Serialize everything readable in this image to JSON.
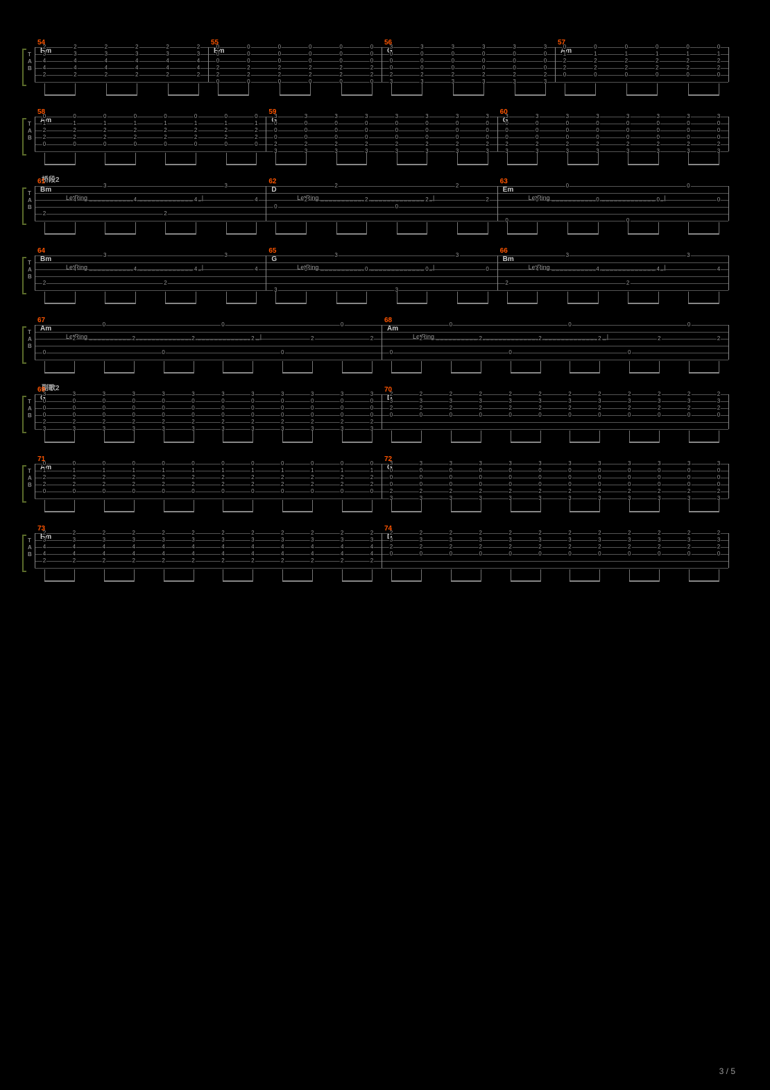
{
  "page_number": "3 / 5",
  "colors": {
    "bg": "#000000",
    "line": "#555555",
    "text": "#999999",
    "chord": "#cccccc",
    "measure_num": "#ff5500",
    "bracket": "#5a6b2a"
  },
  "tab_clef": [
    "T",
    "A",
    "B"
  ],
  "staff_width": 1000,
  "string_count": 6,
  "string_spacing": 10,
  "systems": [
    {
      "section": null,
      "letring": [],
      "measures": [
        {
          "num": "54",
          "chord": "Bm",
          "frets": [
            [
              2,
              3,
              4,
              4,
              2
            ],
            [
              2,
              3,
              4,
              4,
              2
            ],
            [
              2,
              3,
              4,
              4,
              2
            ],
            [
              2,
              3,
              4,
              4,
              2
            ],
            [
              2,
              3,
              4,
              4,
              2
            ],
            [
              2,
              3,
              4,
              4,
              2
            ]
          ],
          "strings": [
            0,
            1,
            2,
            3,
            4
          ]
        },
        {
          "num": "55",
          "chord": "Em",
          "frets": [
            [
              0,
              0,
              0,
              2,
              2,
              0
            ],
            [
              0,
              0,
              0,
              2,
              2,
              0
            ],
            [
              0,
              0,
              0,
              2,
              2,
              0
            ],
            [
              0,
              0,
              0,
              2,
              2,
              0
            ],
            [
              0,
              0,
              0,
              2,
              2,
              0
            ],
            [
              0,
              0,
              0,
              2,
              2,
              0
            ]
          ],
          "strings": [
            0,
            1,
            2,
            3,
            4,
            5
          ]
        },
        {
          "num": "56",
          "chord": "G",
          "frets": [
            [
              3,
              0,
              0,
              0,
              2,
              3
            ],
            [
              3,
              0,
              0,
              0,
              2,
              3
            ],
            [
              3,
              0,
              0,
              0,
              2,
              3
            ],
            [
              3,
              0,
              0,
              0,
              2,
              3
            ],
            [
              3,
              0,
              0,
              0,
              2,
              3
            ],
            [
              3,
              0,
              0,
              0,
              2,
              3
            ]
          ],
          "strings": [
            0,
            1,
            2,
            3,
            4,
            5
          ]
        },
        {
          "num": "57",
          "chord": "Am",
          "frets": [
            [
              0,
              1,
              2,
              2,
              0
            ],
            [
              0,
              1,
              2,
              2,
              0
            ],
            [
              0,
              1,
              2,
              2,
              0
            ],
            [
              0,
              1,
              2,
              2,
              0
            ],
            [
              0,
              1,
              2,
              2,
              0
            ],
            [
              0,
              1,
              2,
              2,
              0
            ]
          ],
          "strings": [
            0,
            1,
            2,
            3,
            4
          ]
        }
      ],
      "beam_pattern": "strum"
    },
    {
      "section": null,
      "letring": [],
      "measures": [
        {
          "num": "58",
          "chord": "Am",
          "frets": [
            [
              0,
              1,
              2,
              2,
              0
            ],
            [
              0,
              1,
              2,
              2,
              0
            ],
            [
              0,
              1,
              2,
              2,
              0
            ],
            [
              0,
              1,
              2,
              2,
              0
            ],
            [
              0,
              1,
              2,
              2,
              0
            ],
            [
              0,
              1,
              2,
              2,
              0
            ],
            [
              0,
              1,
              2,
              2,
              0
            ],
            [
              0,
              1,
              2,
              2,
              0
            ]
          ],
          "strings": [
            0,
            1,
            2,
            3,
            4
          ]
        },
        {
          "num": "59",
          "chord": "G",
          "frets": [
            [
              3,
              0,
              0,
              0,
              2,
              3
            ],
            [
              3,
              0,
              0,
              0,
              2,
              3
            ],
            [
              3,
              0,
              0,
              0,
              2,
              3
            ],
            [
              3,
              0,
              0,
              0,
              2,
              3
            ],
            [
              3,
              0,
              0,
              0,
              2,
              3
            ],
            [
              3,
              0,
              0,
              0,
              2,
              3
            ],
            [
              3,
              0,
              0,
              0,
              2,
              3
            ],
            [
              3,
              0,
              0,
              0,
              2,
              3
            ]
          ],
          "strings": [
            0,
            1,
            2,
            3,
            4,
            5
          ]
        },
        {
          "num": "60",
          "chord": "G",
          "frets": [
            [
              3,
              0,
              0,
              0,
              2,
              3
            ],
            [
              3,
              0,
              0,
              0,
              2,
              3
            ],
            [
              3,
              0,
              0,
              0,
              2,
              3
            ],
            [
              3,
              0,
              0,
              0,
              2,
              3
            ],
            [
              3,
              0,
              0,
              0,
              2,
              3
            ],
            [
              3,
              0,
              0,
              0,
              2,
              3
            ],
            [
              3,
              0,
              0,
              0,
              2,
              3
            ],
            [
              3,
              0,
              0,
              0,
              2,
              3
            ]
          ],
          "strings": [
            0,
            1,
            2,
            3,
            4,
            5
          ]
        }
      ],
      "beam_pattern": "strum"
    },
    {
      "section": "桥段2",
      "letring": [
        {
          "m": 0,
          "text": "LetRing"
        },
        {
          "m": 1,
          "text": "LetRing"
        },
        {
          "m": 2,
          "text": "LetRing"
        }
      ],
      "measures": [
        {
          "num": "61",
          "chord": "Bm",
          "pattern": "arp",
          "notes": [
            {
              "s": 4,
              "f": 2
            },
            {
              "s": 2,
              "f": 4
            },
            {
              "s": 0,
              "f": 3
            },
            {
              "s": 2,
              "f": 4
            },
            {
              "s": 4,
              "f": 2
            },
            {
              "s": 2,
              "f": 4
            },
            {
              "s": 0,
              "f": 3
            },
            {
              "s": 2,
              "f": 4
            }
          ]
        },
        {
          "num": "62",
          "chord": "D",
          "pattern": "arp",
          "notes": [
            {
              "s": 3,
              "f": 0
            },
            {
              "s": 2,
              "f": 2
            },
            {
              "s": 0,
              "f": 2
            },
            {
              "s": 2,
              "f": 2
            },
            {
              "s": 3,
              "f": 0
            },
            {
              "s": 2,
              "f": 2
            },
            {
              "s": 0,
              "f": 2
            },
            {
              "s": 2,
              "f": 2
            }
          ]
        },
        {
          "num": "63",
          "chord": "Em",
          "pattern": "arp",
          "notes": [
            {
              "s": 5,
              "f": 0
            },
            {
              "s": 2,
              "f": 0
            },
            {
              "s": 0,
              "f": 0
            },
            {
              "s": 2,
              "f": 0
            },
            {
              "s": 5,
              "f": 0
            },
            {
              "s": 2,
              "f": 0
            },
            {
              "s": 0,
              "f": 0
            },
            {
              "s": 2,
              "f": 0
            }
          ]
        }
      ],
      "beam_pattern": "eighths"
    },
    {
      "section": null,
      "letring": [
        {
          "m": 0,
          "text": "LetRing"
        },
        {
          "m": 1,
          "text": "LetRing"
        },
        {
          "m": 2,
          "text": "LetRing"
        }
      ],
      "measures": [
        {
          "num": "64",
          "chord": "Bm",
          "pattern": "arp",
          "notes": [
            {
              "s": 4,
              "f": 2
            },
            {
              "s": 2,
              "f": 4
            },
            {
              "s": 0,
              "f": 3
            },
            {
              "s": 2,
              "f": 4
            },
            {
              "s": 4,
              "f": 2
            },
            {
              "s": 2,
              "f": 4
            },
            {
              "s": 0,
              "f": 3
            },
            {
              "s": 2,
              "f": 4
            }
          ]
        },
        {
          "num": "65",
          "chord": "G",
          "pattern": "arp",
          "notes": [
            {
              "s": 5,
              "f": 3
            },
            {
              "s": 2,
              "f": 0
            },
            {
              "s": 0,
              "f": 3
            },
            {
              "s": 2,
              "f": 0
            },
            {
              "s": 5,
              "f": 3
            },
            {
              "s": 2,
              "f": 0
            },
            {
              "s": 0,
              "f": 3
            },
            {
              "s": 2,
              "f": 0
            }
          ]
        },
        {
          "num": "66",
          "chord": "Bm",
          "pattern": "arp",
          "notes": [
            {
              "s": 4,
              "f": 2
            },
            {
              "s": 2,
              "f": 4
            },
            {
              "s": 0,
              "f": 3
            },
            {
              "s": 2,
              "f": 4
            },
            {
              "s": 4,
              "f": 2
            },
            {
              "s": 2,
              "f": 4
            },
            {
              "s": 0,
              "f": 3
            },
            {
              "s": 2,
              "f": 4
            }
          ]
        }
      ],
      "beam_pattern": "eighths"
    },
    {
      "section": null,
      "letring": [
        {
          "m": 0,
          "text": "LetRing"
        },
        {
          "m": 1,
          "text": "LetRing"
        }
      ],
      "measures": [
        {
          "num": "67",
          "chord": "Am",
          "pattern": "arp",
          "notes": [
            {
              "s": 4,
              "f": 0
            },
            {
              "s": 2,
              "f": 2
            },
            {
              "s": 0,
              "f": 0
            },
            {
              "s": 2,
              "f": 2
            },
            {
              "s": 4,
              "f": 0
            },
            {
              "s": 2,
              "f": 2
            },
            {
              "s": 0,
              "f": 0
            },
            {
              "s": 2,
              "f": 2
            },
            {
              "s": 4,
              "f": 0
            },
            {
              "s": 2,
              "f": 2
            },
            {
              "s": 0,
              "f": 0
            },
            {
              "s": 2,
              "f": 2
            }
          ]
        },
        {
          "num": "68",
          "chord": "Am",
          "pattern": "arp",
          "notes": [
            {
              "s": 4,
              "f": 0
            },
            {
              "s": 2,
              "f": 2
            },
            {
              "s": 0,
              "f": 0
            },
            {
              "s": 2,
              "f": 2
            },
            {
              "s": 4,
              "f": 0
            },
            {
              "s": 2,
              "f": 2
            },
            {
              "s": 0,
              "f": 0
            },
            {
              "s": 2,
              "f": 2
            },
            {
              "s": 4,
              "f": 0
            },
            {
              "s": 2,
              "f": 2
            },
            {
              "s": 0,
              "f": 0
            },
            {
              "s": 2,
              "f": 2
            }
          ]
        }
      ],
      "beam_pattern": "eighths"
    },
    {
      "section": "副歌2",
      "letring": [],
      "measures": [
        {
          "num": "69",
          "chord": "G",
          "frets": [
            [
              3,
              0,
              0,
              0,
              2,
              3
            ]
          ],
          "repeat": 12,
          "strings": [
            0,
            1,
            2,
            3,
            4,
            5
          ]
        },
        {
          "num": "70",
          "chord": "D",
          "frets": [
            [
              2,
              3,
              2,
              0
            ]
          ],
          "repeat": 12,
          "strings": [
            0,
            1,
            2,
            3
          ]
        }
      ],
      "beam_pattern": "strum"
    },
    {
      "section": null,
      "letring": [],
      "measures": [
        {
          "num": "71",
          "chord": "Am",
          "frets": [
            [
              0,
              1,
              2,
              2,
              0
            ]
          ],
          "repeat": 12,
          "strings": [
            0,
            1,
            2,
            3,
            4
          ]
        },
        {
          "num": "72",
          "chord": "G",
          "frets": [
            [
              3,
              0,
              0,
              0,
              2,
              3
            ]
          ],
          "repeat": 12,
          "strings": [
            0,
            1,
            2,
            3,
            4,
            5
          ]
        }
      ],
      "beam_pattern": "strum"
    },
    {
      "section": null,
      "letring": [],
      "measures": [
        {
          "num": "73",
          "chord": "Bm",
          "frets": [
            [
              2,
              3,
              4,
              4,
              2
            ]
          ],
          "repeat": 12,
          "strings": [
            0,
            1,
            2,
            3,
            4
          ]
        },
        {
          "num": "74",
          "chord": "D",
          "frets": [
            [
              2,
              3,
              2,
              0
            ]
          ],
          "repeat": 12,
          "strings": [
            0,
            1,
            2,
            3
          ]
        }
      ],
      "beam_pattern": "strum"
    }
  ]
}
